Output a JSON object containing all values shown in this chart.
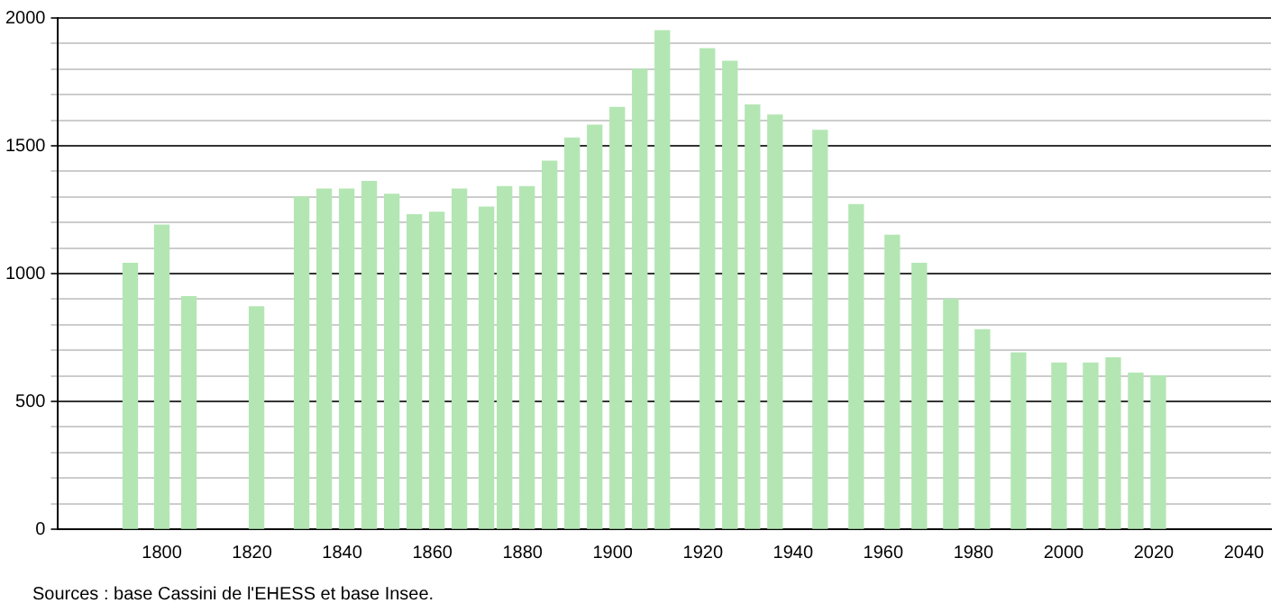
{
  "chart_data": {
    "type": "bar",
    "x": [
      1793,
      1800,
      1806,
      1821,
      1831,
      1836,
      1841,
      1846,
      1851,
      1856,
      1861,
      1866,
      1872,
      1876,
      1881,
      1886,
      1891,
      1896,
      1901,
      1906,
      1911,
      1921,
      1926,
      1931,
      1936,
      1946,
      1954,
      1962,
      1968,
      1975,
      1982,
      1990,
      1999,
      2006,
      2011,
      2016,
      2021
    ],
    "values": [
      1040,
      1190,
      910,
      870,
      1300,
      1330,
      1330,
      1360,
      1310,
      1230,
      1240,
      1330,
      1260,
      1340,
      1340,
      1440,
      1530,
      1580,
      1650,
      1800,
      1950,
      1880,
      1830,
      1660,
      1620,
      1560,
      1270,
      1150,
      1040,
      900,
      780,
      690,
      650,
      650,
      670,
      610,
      600
    ],
    "color": "#b3e6b3",
    "xlim": [
      1777,
      2046
    ],
    "xticks": [
      1800,
      1820,
      1840,
      1860,
      1880,
      1900,
      1920,
      1940,
      1960,
      1980,
      2000,
      2020,
      2040
    ],
    "ylim": [
      0,
      2000
    ],
    "yticks": [
      0,
      {
        "value": 100,
        "label": null
      },
      {
        "value": 200,
        "label": null
      },
      {
        "value": 300,
        "label": null
      },
      {
        "value": 400,
        "label": null
      },
      500,
      {
        "value": 600,
        "label": null
      },
      {
        "value": 700,
        "label": null
      },
      {
        "value": 800,
        "label": null
      },
      {
        "value": 900,
        "label": null
      },
      1000,
      {
        "value": 1100,
        "label": null
      },
      {
        "value": 1200,
        "label": null
      },
      {
        "value": 1300,
        "label": null
      },
      {
        "value": 1400,
        "label": null
      },
      1500,
      {
        "value": 1600,
        "label": null
      },
      {
        "value": 1700,
        "label": null
      },
      {
        "value": 1800,
        "label": null
      },
      {
        "value": 1900,
        "label": null
      },
      2000
    ],
    "grid": "y",
    "legend": false,
    "annotations": [
      "Sources : base Cassini de l'EHESS et base Insee."
    ]
  }
}
